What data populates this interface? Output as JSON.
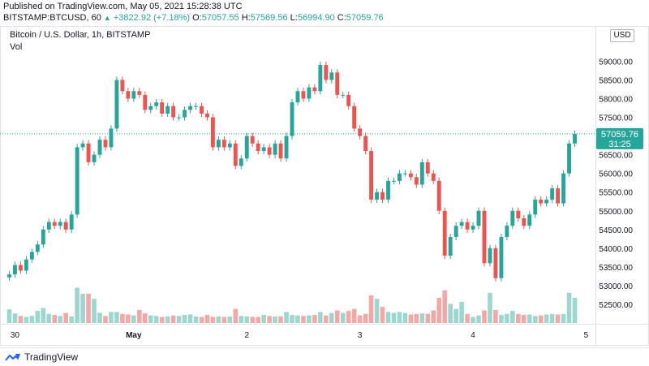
{
  "meta": {
    "published": "Published on TradingView.com, May 05, 2021 15:28:38 UTC"
  },
  "ticker": {
    "symbol": "BITSTAMP:BTCUSD, 60",
    "change": "+3822.92 (+7.18%)",
    "open_label": "O:",
    "open": "57057.55",
    "high_label": "H:",
    "high": "57569.56",
    "low_label": "L:",
    "low": "56994.90",
    "close_label": "C:",
    "close": "57059.76"
  },
  "legend": {
    "title": "Bitcoin / U.S. Dollar, 1h, BITSTAMP",
    "volume": "Vol"
  },
  "currency": "USD",
  "last_price": {
    "value": "57059.76",
    "countdown": "31:25"
  },
  "brand": {
    "name": "TradingView"
  },
  "colors": {
    "up": "#26a69a",
    "down": "#ef5350",
    "up_vol": "#9bd6cf",
    "down_vol": "#f5a7a5",
    "price_badge": "#26a69a"
  },
  "chart_data": {
    "type": "candlestick",
    "title": "Bitcoin / U.S. Dollar, 1h, BITSTAMP",
    "ylim": [
      52000,
      59900
    ],
    "y_ticks": [
      "52500.00",
      "53000.00",
      "53500.00",
      "54000.00",
      "54500.00",
      "55000.00",
      "55500.00",
      "56000.00",
      "56500.00",
      "57000.00",
      "57500.00",
      "58000.00",
      "58500.00",
      "59000.00"
    ],
    "x_ticks": [
      "30",
      "May",
      "2",
      "3",
      "4",
      "5"
    ],
    "x_tick_bar_index": [
      1,
      22,
      42,
      62,
      82,
      102
    ],
    "closes": [
      53300,
      53550,
      53400,
      53700,
      53900,
      54100,
      54500,
      54700,
      54600,
      54700,
      54500,
      54900,
      56700,
      56800,
      56300,
      56500,
      56900,
      56700,
      57200,
      58500,
      58200,
      58000,
      58200,
      58100,
      57700,
      57800,
      57900,
      57600,
      57800,
      57500,
      57500,
      57700,
      57800,
      57800,
      57600,
      57500,
      56700,
      56900,
      56700,
      56800,
      56200,
      56400,
      57000,
      56800,
      56600,
      56700,
      56500,
      56800,
      56400,
      57000,
      57900,
      58200,
      58000,
      58300,
      58200,
      58900,
      58500,
      58700,
      58100,
      58100,
      57800,
      57200,
      57000,
      56600,
      55300,
      55500,
      55300,
      55800,
      55800,
      56000,
      56000,
      55900,
      55700,
      56300,
      56000,
      55800,
      55000,
      53800,
      54300,
      54600,
      54700,
      54500,
      54600,
      55000,
      53600,
      54000,
      53200,
      54300,
      54600,
      55000,
      54800,
      54600,
      54900,
      55300,
      55200,
      55300,
      55600,
      55200,
      56000,
      56800,
      57060
    ],
    "volume_scale_max": 100,
    "volumes": [
      27,
      19,
      14,
      12,
      14,
      24,
      30,
      18,
      16,
      14,
      20,
      13,
      70,
      58,
      58,
      48,
      20,
      14,
      22,
      22,
      18,
      17,
      15,
      26,
      19,
      15,
      14,
      12,
      13,
      15,
      14,
      16,
      17,
      13,
      12,
      16,
      12,
      13,
      12,
      13,
      28,
      14,
      13,
      12,
      12,
      16,
      14,
      13,
      13,
      22,
      16,
      15,
      14,
      15,
      16,
      22,
      15,
      20,
      25,
      20,
      24,
      28,
      15,
      18,
      55,
      48,
      32,
      22,
      20,
      22,
      20,
      17,
      18,
      19,
      18,
      25,
      50,
      65,
      38,
      28,
      42,
      18,
      12,
      15,
      25,
      60,
      26,
      16,
      18,
      24,
      18,
      16,
      17,
      14,
      15,
      17,
      18,
      17,
      18,
      60,
      50
    ]
  }
}
